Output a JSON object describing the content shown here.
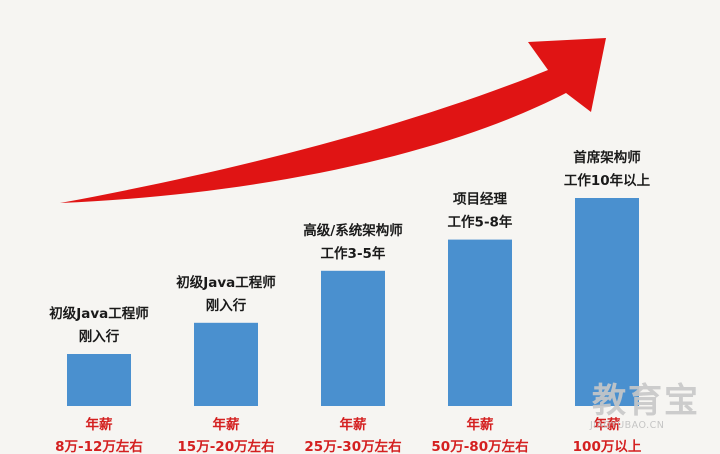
{
  "chart_data": {
    "type": "bar",
    "categories": [
      [
        "初级Java工程师",
        "刚入行"
      ],
      [
        "初级Java工程师",
        "刚入行"
      ],
      [
        "高级/系统架构师",
        "工作3-5年"
      ],
      [
        "项目经理",
        "工作5-8年"
      ],
      [
        "首席架构师",
        "工作10年以上"
      ]
    ],
    "values": [
      1,
      1.6,
      2.6,
      3.2,
      4
    ],
    "salary_labels": [
      [
        "年薪",
        "8万-12万左右"
      ],
      [
        "年薪",
        "15万-20万左右"
      ],
      [
        "年薪",
        "25万-30万左右"
      ],
      [
        "年薪",
        "50万-80万左右"
      ],
      [
        "年薪",
        "100万以上"
      ]
    ],
    "title": "",
    "xlabel": "",
    "ylabel": "",
    "grid": false,
    "legend": "none"
  },
  "colors": {
    "bar": "#4a90cf",
    "arrow": "#e01414",
    "salary_text": "#d42020",
    "label_text": "#1a1a1a",
    "background": "#f6f5f2"
  },
  "watermark": {
    "main": "教育宝",
    "sub": "JIAOYUBAO.CN"
  }
}
